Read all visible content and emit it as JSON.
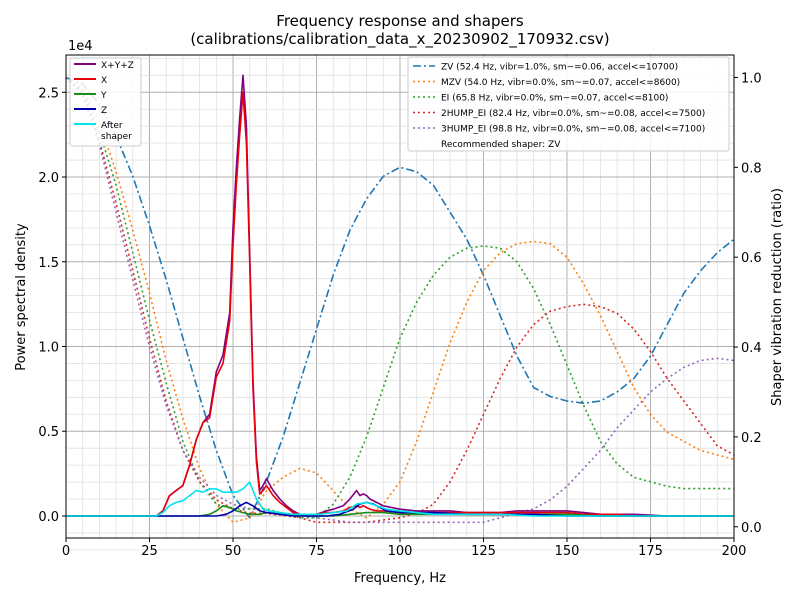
{
  "chart_data": {
    "type": "line",
    "title": "Frequency response and shapers",
    "subtitle": "(calibrations/calibration_data_x_20230902_170932.csv)",
    "xlabel": "Frequency, Hz",
    "ylabel": "Power spectral density",
    "y2label": "Shaper vibration reduction (ratio)",
    "yscale_label": "1e4",
    "xlim": [
      0,
      200
    ],
    "ylim": [
      -0.13,
      2.72
    ],
    "y2lim": [
      -0.025,
      1.05
    ],
    "xticks": [
      "0",
      "25",
      "50",
      "75",
      "100",
      "125",
      "150",
      "175",
      "200"
    ],
    "yticks": [
      "0.0",
      "0.5",
      "1.0",
      "1.5",
      "2.0",
      "2.5"
    ],
    "y2ticks": [
      "0.0",
      "0.2",
      "0.4",
      "0.6",
      "0.8",
      "1.0"
    ],
    "grid": true,
    "legend_left_position": "top-left",
    "legend_right_position": "top-right",
    "psd_series": [
      {
        "name": "X+Y+Z",
        "color": "#800080",
        "width": 1.6,
        "x": [
          0,
          27,
          29,
          31,
          33,
          35,
          37,
          39,
          41,
          43,
          45,
          47,
          49,
          50,
          51,
          52,
          53,
          54,
          55,
          56,
          57,
          58,
          59,
          60,
          62,
          64,
          66,
          68,
          70,
          72,
          75,
          78,
          80,
          83,
          85,
          87,
          88,
          89,
          90,
          91,
          93,
          95,
          100,
          105,
          110,
          115,
          120,
          125,
          130,
          135,
          140,
          145,
          150,
          155,
          160,
          165,
          170,
          180,
          190,
          200
        ],
        "y": [
          0,
          0,
          0.03,
          0.12,
          0.15,
          0.18,
          0.3,
          0.45,
          0.55,
          0.6,
          0.85,
          0.95,
          1.2,
          1.7,
          2.05,
          2.35,
          2.6,
          2.3,
          1.55,
          0.8,
          0.35,
          0.15,
          0.18,
          0.22,
          0.15,
          0.1,
          0.06,
          0.03,
          0.01,
          0.01,
          0.01,
          0.03,
          0.04,
          0.06,
          0.1,
          0.15,
          0.12,
          0.13,
          0.12,
          0.1,
          0.08,
          0.06,
          0.04,
          0.03,
          0.03,
          0.03,
          0.02,
          0.02,
          0.02,
          0.03,
          0.03,
          0.03,
          0.03,
          0.02,
          0.01,
          0.01,
          0.01,
          0.0,
          0.0,
          0.0
        ]
      },
      {
        "name": "X",
        "color": "#e8000b",
        "width": 1.6,
        "x": [
          0,
          27,
          29,
          31,
          33,
          35,
          37,
          39,
          41,
          43,
          45,
          47,
          49,
          50,
          51,
          52,
          53,
          54,
          55,
          56,
          57,
          58,
          59,
          60,
          62,
          64,
          66,
          68,
          70,
          72,
          75,
          78,
          80,
          83,
          85,
          87,
          88,
          89,
          90,
          91,
          93,
          95,
          100,
          105,
          110,
          115,
          120,
          125,
          130,
          135,
          140,
          145,
          150,
          155,
          160,
          165,
          170,
          180,
          190,
          200
        ],
        "y": [
          0,
          0,
          0.03,
          0.12,
          0.15,
          0.18,
          0.3,
          0.45,
          0.55,
          0.58,
          0.82,
          0.9,
          1.15,
          1.6,
          1.95,
          2.25,
          2.5,
          2.2,
          1.5,
          0.75,
          0.32,
          0.13,
          0.15,
          0.18,
          0.12,
          0.08,
          0.05,
          0.02,
          0.01,
          0.01,
          0.01,
          0.02,
          0.02,
          0.03,
          0.05,
          0.06,
          0.05,
          0.06,
          0.05,
          0.04,
          0.03,
          0.03,
          0.02,
          0.02,
          0.02,
          0.02,
          0.02,
          0.02,
          0.02,
          0.02,
          0.02,
          0.02,
          0.02,
          0.01,
          0.01,
          0.01,
          0.0,
          0.0,
          0.0,
          0.0
        ]
      },
      {
        "name": "Y",
        "color": "#1a8c1a",
        "width": 1.6,
        "x": [
          0,
          40,
          43,
          45,
          47,
          49,
          51,
          53,
          55,
          58,
          60,
          65,
          70,
          80,
          85,
          90,
          95,
          100,
          110,
          120,
          130,
          140,
          150,
          160,
          170,
          180,
          200
        ],
        "y": [
          0,
          0,
          0.01,
          0.03,
          0.06,
          0.05,
          0.03,
          0.02,
          0.01,
          0.01,
          0.02,
          0.01,
          0.0,
          0.0,
          0.01,
          0.02,
          0.02,
          0.01,
          0.01,
          0.01,
          0.01,
          0.01,
          0.01,
          0.0,
          0.0,
          0.0,
          0.0
        ]
      },
      {
        "name": "Z",
        "color": "#0000b0",
        "width": 1.6,
        "x": [
          0,
          45,
          48,
          50,
          52,
          54,
          56,
          58,
          60,
          64,
          68,
          72,
          78,
          82,
          86,
          88,
          90,
          92,
          94,
          96,
          100,
          110,
          120,
          130,
          140,
          150,
          160,
          170,
          180,
          190,
          200
        ],
        "y": [
          0,
          0,
          0.01,
          0.03,
          0.06,
          0.08,
          0.06,
          0.03,
          0.02,
          0.01,
          0.0,
          0.0,
          0.0,
          0.01,
          0.04,
          0.07,
          0.08,
          0.07,
          0.05,
          0.03,
          0.02,
          0.02,
          0.01,
          0.01,
          0.01,
          0.0,
          0.0,
          0.0,
          0.0,
          0.0,
          0.0
        ]
      },
      {
        "name": "After\nshaper",
        "color": "#00e5ee",
        "width": 1.6,
        "x": [
          0,
          27,
          29,
          31,
          33,
          35,
          37,
          39,
          41,
          43,
          45,
          47,
          49,
          51,
          53,
          55,
          57,
          59,
          61,
          64,
          68,
          72,
          76,
          80,
          84,
          87,
          90,
          93,
          96,
          100,
          110,
          120,
          130,
          140,
          150,
          160,
          170,
          180,
          190,
          200
        ],
        "y": [
          0,
          0,
          0.02,
          0.06,
          0.08,
          0.09,
          0.12,
          0.15,
          0.14,
          0.16,
          0.16,
          0.14,
          0.14,
          0.14,
          0.16,
          0.2,
          0.1,
          0.04,
          0.03,
          0.02,
          0.01,
          0.01,
          0.01,
          0.02,
          0.03,
          0.07,
          0.08,
          0.06,
          0.04,
          0.03,
          0.01,
          0.01,
          0.01,
          0.0,
          0.0,
          0.0,
          0.0,
          0.0,
          0.0,
          0.0
        ]
      }
    ],
    "shaper_series": [
      {
        "name": "ZV (52.4 Hz, vibr=1.0%, sm~=0.06, accel<=10700)",
        "color": "#1f77b4",
        "dash": "dashdot",
        "x": [
          0,
          5,
          10,
          15,
          20,
          25,
          30,
          35,
          40,
          45,
          50,
          55,
          60,
          65,
          70,
          75,
          80,
          85,
          90,
          95,
          100,
          105,
          110,
          115,
          120,
          125,
          130,
          135,
          140,
          145,
          150,
          155,
          160,
          165,
          170,
          175,
          180,
          185,
          190,
          195,
          200
        ],
        "y": [
          1.0,
          0.985,
          0.94,
          0.87,
          0.78,
          0.67,
          0.55,
          0.42,
          0.29,
          0.17,
          0.07,
          0.02,
          0.1,
          0.2,
          0.32,
          0.44,
          0.56,
          0.66,
          0.73,
          0.78,
          0.8,
          0.79,
          0.76,
          0.7,
          0.64,
          0.56,
          0.47,
          0.38,
          0.31,
          0.29,
          0.28,
          0.275,
          0.28,
          0.3,
          0.33,
          0.38,
          0.45,
          0.52,
          0.57,
          0.61,
          0.64
        ]
      },
      {
        "name": "MZV (54.0 Hz, vibr=0.0%, sm~=0.07, accel<=8600)",
        "color": "#ff7f0e",
        "dash": "dotted",
        "x": [
          0,
          5,
          10,
          15,
          20,
          25,
          30,
          35,
          40,
          45,
          50,
          55,
          60,
          65,
          70,
          75,
          80,
          85,
          90,
          95,
          100,
          105,
          110,
          115,
          120,
          125,
          130,
          135,
          140,
          145,
          150,
          155,
          160,
          165,
          170,
          175,
          180,
          185,
          190,
          195,
          200
        ],
        "y": [
          1.0,
          0.975,
          0.9,
          0.79,
          0.66,
          0.52,
          0.37,
          0.24,
          0.13,
          0.05,
          0.01,
          0.02,
          0.08,
          0.11,
          0.13,
          0.12,
          0.08,
          0.04,
          0.02,
          0.05,
          0.1,
          0.19,
          0.3,
          0.41,
          0.5,
          0.57,
          0.61,
          0.63,
          0.635,
          0.63,
          0.6,
          0.54,
          0.47,
          0.39,
          0.31,
          0.25,
          0.21,
          0.19,
          0.17,
          0.16,
          0.15
        ]
      },
      {
        "name": "EI (65.8 Hz, vibr=0.0%, sm~=0.07, accel<=8100)",
        "color": "#2ca02c",
        "dash": "dotted",
        "x": [
          0,
          5,
          10,
          15,
          20,
          25,
          30,
          35,
          40,
          45,
          50,
          55,
          60,
          65,
          70,
          75,
          80,
          85,
          90,
          95,
          100,
          105,
          110,
          115,
          120,
          125,
          130,
          135,
          140,
          145,
          150,
          155,
          160,
          165,
          170,
          175,
          180,
          185,
          190,
          195,
          200
        ],
        "y": [
          1.0,
          0.97,
          0.88,
          0.76,
          0.61,
          0.46,
          0.32,
          0.19,
          0.1,
          0.05,
          0.04,
          0.04,
          0.04,
          0.03,
          0.02,
          0.02,
          0.05,
          0.11,
          0.2,
          0.31,
          0.42,
          0.5,
          0.56,
          0.6,
          0.62,
          0.625,
          0.62,
          0.59,
          0.53,
          0.45,
          0.36,
          0.27,
          0.19,
          0.14,
          0.11,
          0.1,
          0.09,
          0.085,
          0.085,
          0.085,
          0.085
        ]
      },
      {
        "name": "2HUMP_EI (82.4 Hz, vibr=0.0%, sm~=0.08, accel<=7500)",
        "color": "#d62728",
        "dash": "dotted",
        "x": [
          0,
          5,
          10,
          15,
          20,
          25,
          30,
          35,
          40,
          45,
          50,
          55,
          60,
          65,
          70,
          75,
          80,
          85,
          90,
          95,
          100,
          105,
          110,
          115,
          120,
          125,
          130,
          135,
          140,
          145,
          150,
          155,
          160,
          165,
          170,
          175,
          180,
          185,
          190,
          195,
          200
        ],
        "y": [
          1.0,
          0.965,
          0.86,
          0.72,
          0.57,
          0.42,
          0.28,
          0.17,
          0.1,
          0.06,
          0.04,
          0.03,
          0.03,
          0.025,
          0.02,
          0.01,
          0.01,
          0.01,
          0.01,
          0.015,
          0.02,
          0.03,
          0.05,
          0.1,
          0.17,
          0.25,
          0.33,
          0.4,
          0.45,
          0.48,
          0.49,
          0.495,
          0.49,
          0.475,
          0.44,
          0.39,
          0.33,
          0.28,
          0.23,
          0.18,
          0.16
        ]
      },
      {
        "name": "3HUMP_EI (98.8 Hz, vibr=0.0%, sm~=0.08, accel<=7100)",
        "color": "#9467bd",
        "dash": "dotted",
        "x": [
          0,
          5,
          10,
          15,
          20,
          25,
          30,
          35,
          40,
          45,
          50,
          55,
          60,
          65,
          70,
          75,
          80,
          85,
          90,
          95,
          100,
          105,
          110,
          115,
          120,
          125,
          130,
          135,
          140,
          145,
          150,
          155,
          160,
          165,
          170,
          175,
          180,
          185,
          190,
          195,
          200
        ],
        "y": [
          1.0,
          0.96,
          0.85,
          0.7,
          0.55,
          0.4,
          0.27,
          0.17,
          0.11,
          0.07,
          0.05,
          0.04,
          0.035,
          0.03,
          0.025,
          0.02,
          0.015,
          0.01,
          0.01,
          0.01,
          0.01,
          0.01,
          0.01,
          0.01,
          0.01,
          0.01,
          0.02,
          0.03,
          0.04,
          0.06,
          0.09,
          0.13,
          0.17,
          0.22,
          0.26,
          0.3,
          0.33,
          0.355,
          0.37,
          0.375,
          0.37
        ]
      }
    ],
    "recommended_text": "Recommended shaper: ZV"
  }
}
